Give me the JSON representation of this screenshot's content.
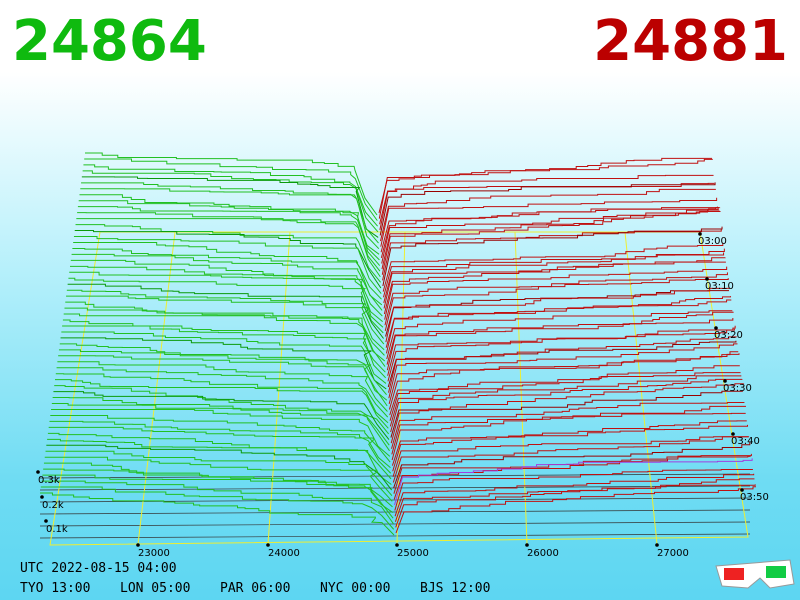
{
  "header": {
    "bid": "24864",
    "ask": "24881"
  },
  "price_axis": [
    "23000",
    "24000",
    "25000",
    "26000",
    "27000"
  ],
  "time_axis": [
    "03:00",
    "03:10",
    "03:20",
    "03:30",
    "03:40",
    "03:50"
  ],
  "depth_axis": [
    "0.3k",
    "0.2k",
    "0.1k"
  ],
  "footer": {
    "utc": "UTC 2022-08-15 04:00",
    "clocks": [
      "TYO 13:00",
      "LON 05:00",
      "PAR 06:00",
      "NYC 00:00",
      "BJS 12:00"
    ]
  }
}
